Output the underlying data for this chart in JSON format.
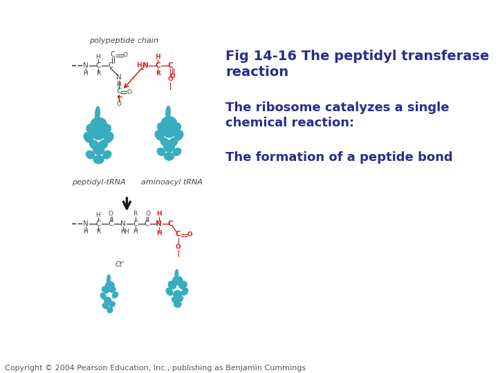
{
  "background_color": "#ffffff",
  "title_line1": "Fig 14-16 The peptidyl transferase",
  "title_line2": "reaction",
  "subtitle1_line1": "The ribosome catalyzes a single",
  "subtitle1_line2": "chemical reaction:",
  "subtitle2": "The formation of a peptide bond",
  "title_color": "#2b2b8c",
  "title_fontsize": 14,
  "subtitle_fontsize": 13,
  "copyright_text": "Copyright © 2004 Pearson Education, Inc., publishing as Benjamin Cummings",
  "copyright_fontsize": 8,
  "tRNA_color": "#3aacbf",
  "red_color": "#cc2222",
  "dark_color": "#444444",
  "label_fontsize": 8,
  "chem_fontsize": 7.5,
  "arrow_color": "#1a1a1a",
  "fig_width": 7.2,
  "fig_height": 5.4,
  "fig_dpi": 100
}
